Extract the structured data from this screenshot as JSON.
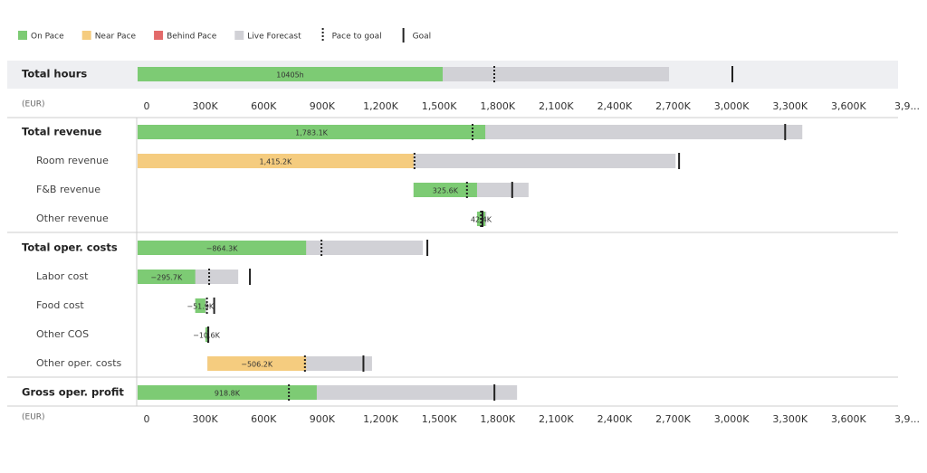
{
  "chart_data": {
    "type": "bullet",
    "legend": [
      {
        "label": "On Pace",
        "color": "#7dcb74"
      },
      {
        "label": "Near Pace",
        "color": "#f5cc7f"
      },
      {
        "label": "Behind Pace",
        "color": "#e36a6a"
      },
      {
        "label": "Live Forecast",
        "color": "#d1d1d6"
      },
      {
        "label": "Pace to goal"
      },
      {
        "label": "Goal"
      }
    ],
    "hours": {
      "label": "Total hours",
      "status": "On Pace",
      "actual": 10405,
      "actual_label": "10405h",
      "forecast": 18125,
      "pace": 12165,
      "goal": 20285,
      "xlim": [
        0,
        25935
      ]
    },
    "unit": "(EUR)",
    "xlim": [
      0,
      3900
    ],
    "xticks": [
      0,
      {
        "value": 300,
        "label": "300K"
      },
      {
        "value": 600,
        "label": "600K"
      },
      {
        "value": 900,
        "label": "900K"
      },
      {
        "value": 1200,
        "label": "1,200K"
      },
      {
        "value": 1500,
        "label": "1,500K"
      },
      {
        "value": 1800,
        "label": "1,800K"
      },
      {
        "value": 2100,
        "label": "2,100K"
      },
      {
        "value": 2400,
        "label": "2,400K"
      },
      {
        "value": 2700,
        "label": "2,700K"
      },
      {
        "value": 3000,
        "label": "3,000K"
      },
      {
        "value": 3300,
        "label": "3,300K"
      },
      {
        "value": 3600,
        "label": "3,600K"
      },
      {
        "value": 3900,
        "label": "3,9..."
      }
    ],
    "sections": [
      {
        "total": {
          "label": "Total revenue",
          "status": "On Pace",
          "actual": 1783.1,
          "actual_label": "1,783.1K",
          "forecast": 3409,
          "pace": 1718,
          "goal": 3321
        },
        "items": [
          {
            "label": "Room revenue",
            "status": "Near Pace",
            "actual": 1415.2,
            "actual_label": "1,415.2K",
            "forecast": 2759,
            "pace": 1420,
            "goal": 2777
          },
          {
            "label": "F&B revenue",
            "status": "On Pace",
            "actual": 325.6,
            "actual_label": "325.6K",
            "forecast": 590,
            "pace": 274,
            "goal": 506
          },
          {
            "label": "Other revenue",
            "status": "On Pace",
            "actual": 42.4,
            "actual_label": "42.4K",
            "forecast": 48,
            "pace": 20,
            "goal": 28
          }
        ]
      },
      {
        "total": {
          "label": "Total oper. costs",
          "status": "On Pace",
          "actual": -864.3,
          "actual_label": "−864.3K",
          "forecast": -1463,
          "pace": -943,
          "goal": -1486
        },
        "items": [
          {
            "label": "Labor cost",
            "status": "On Pace",
            "actual": -295.7,
            "actual_label": "−295.7K",
            "forecast": -516,
            "pace": -367,
            "goal": -576
          },
          {
            "label": "Food cost",
            "status": "On Pace",
            "actual": -51.9,
            "actual_label": "−51.9K",
            "forecast": -60,
            "pace": -60,
            "goal": -97
          },
          {
            "label": "Other COS",
            "status": "On Pace",
            "actual": -10.6,
            "actual_label": "−10.6K",
            "forecast": -12,
            "pace": -14,
            "goal": -15
          },
          {
            "label": "Other oper. costs",
            "status": "Near Pace",
            "actual": -506.2,
            "actual_label": "−506.2K",
            "forecast": -844,
            "pace": -500,
            "goal": -800
          }
        ]
      },
      {
        "total": {
          "label": "Gross oper. profit",
          "status": "On Pace",
          "actual": 918.8,
          "actual_label": "918.8K",
          "forecast": 1946,
          "pace": 776,
          "goal": 1830
        },
        "items": []
      }
    ]
  }
}
